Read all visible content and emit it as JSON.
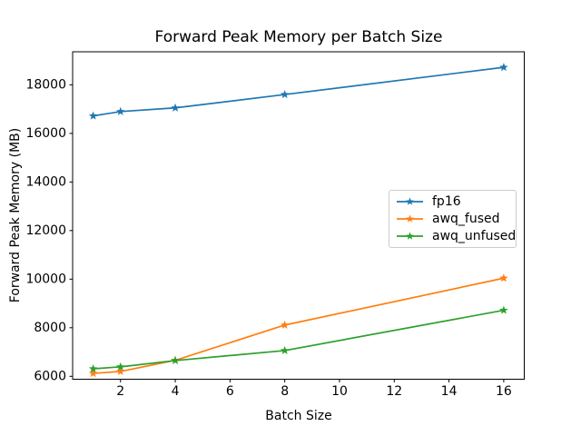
{
  "figure": {
    "background": "#ffffff",
    "text_color": "#000000",
    "spine_color": "#000000"
  },
  "chart_data": {
    "type": "line",
    "title": "Forward Peak Memory per Batch Size",
    "xlabel": "Batch Size",
    "ylabel": "Forward Peak Memory (MB)",
    "x": [
      1,
      2,
      4,
      8,
      16
    ],
    "series": [
      {
        "name": "fp16",
        "color": "#1f77b4",
        "marker": "star",
        "values": [
          16720,
          16900,
          17050,
          17600,
          18720
        ]
      },
      {
        "name": "awq_fused",
        "color": "#ff7f0e",
        "marker": "star",
        "values": [
          6120,
          6200,
          6660,
          8110,
          10040
        ]
      },
      {
        "name": "awq_unfused",
        "color": "#2ca02c",
        "marker": "star",
        "values": [
          6310,
          6390,
          6650,
          7060,
          8720
        ]
      }
    ],
    "xticks": [
      2,
      4,
      6,
      8,
      10,
      12,
      14,
      16
    ],
    "yticks": [
      6000,
      8000,
      10000,
      12000,
      14000,
      16000,
      18000
    ],
    "xlim": [
      0.25,
      16.75
    ],
    "ylim": [
      5880,
      19360
    ],
    "grid": false,
    "legend": {
      "position": "center-right",
      "entries": [
        "fp16",
        "awq_fused",
        "awq_unfused"
      ]
    }
  }
}
